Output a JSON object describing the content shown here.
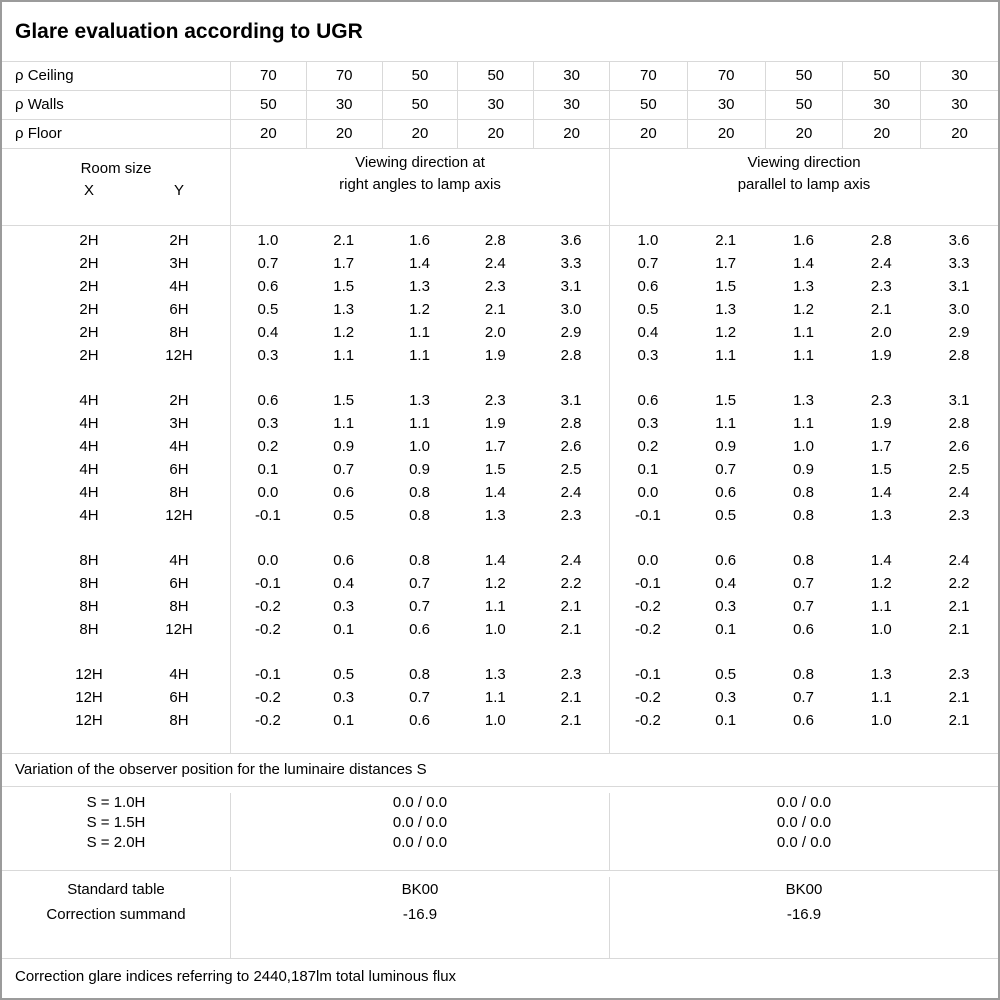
{
  "title": "Glare evaluation according to UGR",
  "colors": {
    "background": "#ffffff",
    "text": "#000000",
    "outer_border": "#9b9b9b",
    "grid_line": "#d9d9d9"
  },
  "reflectances": {
    "rows": [
      {
        "label": "ρ Ceiling",
        "left": [
          "70",
          "70",
          "50",
          "50",
          "30"
        ],
        "right": [
          "70",
          "70",
          "50",
          "50",
          "30"
        ]
      },
      {
        "label": "ρ Walls",
        "left": [
          "50",
          "30",
          "50",
          "30",
          "30"
        ],
        "right": [
          "50",
          "30",
          "50",
          "30",
          "30"
        ]
      },
      {
        "label": "ρ Floor",
        "left": [
          "20",
          "20",
          "20",
          "20",
          "20"
        ],
        "right": [
          "20",
          "20",
          "20",
          "20",
          "20"
        ]
      }
    ]
  },
  "room_size": {
    "title": "Room size",
    "x_label": "X",
    "y_label": "Y"
  },
  "viewing_direction_left": {
    "line1": "Viewing direction at",
    "line2": "right angles to lamp axis"
  },
  "viewing_direction_right": {
    "line1": "Viewing direction",
    "line2": "parallel to lamp axis"
  },
  "ugr_table": {
    "blocks": [
      {
        "rows": [
          {
            "x": "2H",
            "y": "2H",
            "left": [
              "1.0",
              "2.1",
              "1.6",
              "2.8",
              "3.6"
            ],
            "right": [
              "1.0",
              "2.1",
              "1.6",
              "2.8",
              "3.6"
            ]
          },
          {
            "x": "2H",
            "y": "3H",
            "left": [
              "0.7",
              "1.7",
              "1.4",
              "2.4",
              "3.3"
            ],
            "right": [
              "0.7",
              "1.7",
              "1.4",
              "2.4",
              "3.3"
            ]
          },
          {
            "x": "2H",
            "y": "4H",
            "left": [
              "0.6",
              "1.5",
              "1.3",
              "2.3",
              "3.1"
            ],
            "right": [
              "0.6",
              "1.5",
              "1.3",
              "2.3",
              "3.1"
            ]
          },
          {
            "x": "2H",
            "y": "6H",
            "left": [
              "0.5",
              "1.3",
              "1.2",
              "2.1",
              "3.0"
            ],
            "right": [
              "0.5",
              "1.3",
              "1.2",
              "2.1",
              "3.0"
            ]
          },
          {
            "x": "2H",
            "y": "8H",
            "left": [
              "0.4",
              "1.2",
              "1.1",
              "2.0",
              "2.9"
            ],
            "right": [
              "0.4",
              "1.2",
              "1.1",
              "2.0",
              "2.9"
            ]
          },
          {
            "x": "2H",
            "y": "12H",
            "left": [
              "0.3",
              "1.1",
              "1.1",
              "1.9",
              "2.8"
            ],
            "right": [
              "0.3",
              "1.1",
              "1.1",
              "1.9",
              "2.8"
            ]
          }
        ]
      },
      {
        "rows": [
          {
            "x": "4H",
            "y": "2H",
            "left": [
              "0.6",
              "1.5",
              "1.3",
              "2.3",
              "3.1"
            ],
            "right": [
              "0.6",
              "1.5",
              "1.3",
              "2.3",
              "3.1"
            ]
          },
          {
            "x": "4H",
            "y": "3H",
            "left": [
              "0.3",
              "1.1",
              "1.1",
              "1.9",
              "2.8"
            ],
            "right": [
              "0.3",
              "1.1",
              "1.1",
              "1.9",
              "2.8"
            ]
          },
          {
            "x": "4H",
            "y": "4H",
            "left": [
              "0.2",
              "0.9",
              "1.0",
              "1.7",
              "2.6"
            ],
            "right": [
              "0.2",
              "0.9",
              "1.0",
              "1.7",
              "2.6"
            ]
          },
          {
            "x": "4H",
            "y": "6H",
            "left": [
              "0.1",
              "0.7",
              "0.9",
              "1.5",
              "2.5"
            ],
            "right": [
              "0.1",
              "0.7",
              "0.9",
              "1.5",
              "2.5"
            ]
          },
          {
            "x": "4H",
            "y": "8H",
            "left": [
              "0.0",
              "0.6",
              "0.8",
              "1.4",
              "2.4"
            ],
            "right": [
              "0.0",
              "0.6",
              "0.8",
              "1.4",
              "2.4"
            ]
          },
          {
            "x": "4H",
            "y": "12H",
            "left": [
              "-0.1",
              "0.5",
              "0.8",
              "1.3",
              "2.3"
            ],
            "right": [
              "-0.1",
              "0.5",
              "0.8",
              "1.3",
              "2.3"
            ]
          }
        ]
      },
      {
        "rows": [
          {
            "x": "8H",
            "y": "4H",
            "left": [
              "0.0",
              "0.6",
              "0.8",
              "1.4",
              "2.4"
            ],
            "right": [
              "0.0",
              "0.6",
              "0.8",
              "1.4",
              "2.4"
            ]
          },
          {
            "x": "8H",
            "y": "6H",
            "left": [
              "-0.1",
              "0.4",
              "0.7",
              "1.2",
              "2.2"
            ],
            "right": [
              "-0.1",
              "0.4",
              "0.7",
              "1.2",
              "2.2"
            ]
          },
          {
            "x": "8H",
            "y": "8H",
            "left": [
              "-0.2",
              "0.3",
              "0.7",
              "1.1",
              "2.1"
            ],
            "right": [
              "-0.2",
              "0.3",
              "0.7",
              "1.1",
              "2.1"
            ]
          },
          {
            "x": "8H",
            "y": "12H",
            "left": [
              "-0.2",
              "0.1",
              "0.6",
              "1.0",
              "2.1"
            ],
            "right": [
              "-0.2",
              "0.1",
              "0.6",
              "1.0",
              "2.1"
            ]
          }
        ]
      },
      {
        "rows": [
          {
            "x": "12H",
            "y": "4H",
            "left": [
              "-0.1",
              "0.5",
              "0.8",
              "1.3",
              "2.3"
            ],
            "right": [
              "-0.1",
              "0.5",
              "0.8",
              "1.3",
              "2.3"
            ]
          },
          {
            "x": "12H",
            "y": "6H",
            "left": [
              "-0.2",
              "0.3",
              "0.7",
              "1.1",
              "2.1"
            ],
            "right": [
              "-0.2",
              "0.3",
              "0.7",
              "1.1",
              "2.1"
            ]
          },
          {
            "x": "12H",
            "y": "8H",
            "left": [
              "-0.2",
              "0.1",
              "0.6",
              "1.0",
              "2.1"
            ],
            "right": [
              "-0.2",
              "0.1",
              "0.6",
              "1.0",
              "2.1"
            ]
          }
        ]
      }
    ]
  },
  "variation_note": "Variation of the observer position for the luminaire distances S",
  "observer_variation": {
    "rows": [
      {
        "label": "S = 1.0H",
        "left": "0.0 / 0.0",
        "right": "0.0 / 0.0"
      },
      {
        "label": "S = 1.5H",
        "left": "0.0 / 0.0",
        "right": "0.0 / 0.0"
      },
      {
        "label": "S = 2.0H",
        "left": "0.0 / 0.0",
        "right": "0.0 / 0.0"
      }
    ]
  },
  "standard_correction": {
    "rows": [
      {
        "label": "Standard table",
        "left": "BK00",
        "right": "BK00"
      },
      {
        "label": "Correction summand",
        "left": "-16.9",
        "right": "-16.9"
      }
    ]
  },
  "footer_note": "Correction glare indices referring to 2440,187lm total luminous flux"
}
